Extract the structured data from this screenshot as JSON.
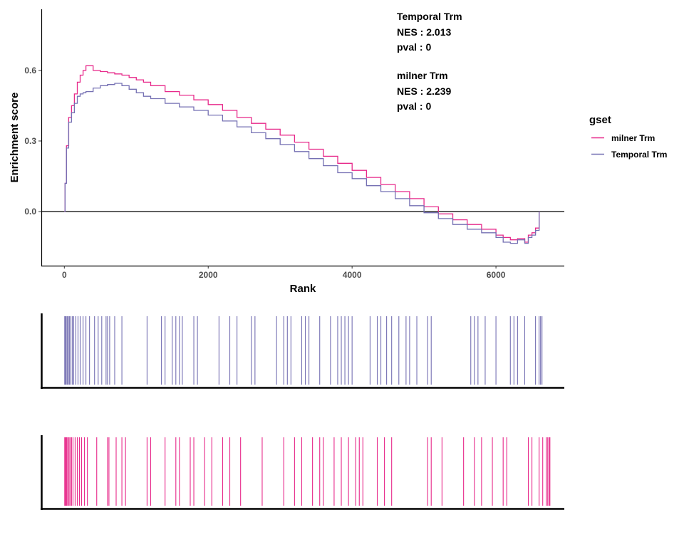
{
  "chart_data": {
    "type": "line",
    "xlabel": "Rank",
    "ylabel": "Enrichment score",
    "xlim": [
      -320,
      6950
    ],
    "ylim": [
      -0.23,
      0.86
    ],
    "x_ticks": [
      0,
      2000,
      4000,
      6000
    ],
    "x_tick_labels": [
      "0",
      "2000",
      "4000",
      "6000"
    ],
    "y_ticks": [
      0.0,
      0.3,
      0.6
    ],
    "y_tick_labels": [
      "0.0",
      "0.3",
      "0.6"
    ],
    "zero_line": true,
    "grid": false,
    "legend": {
      "title": "gset",
      "position": "right",
      "entries": [
        {
          "label": "milner Trm",
          "color": "#e7298a"
        },
        {
          "label": "Temporal Trm",
          "color": "#7570b3"
        }
      ]
    },
    "annotations": [
      {
        "lines": [
          "Temporal Trm",
          "NES : 2.013",
          "pval : 0"
        ]
      },
      {
        "lines": [
          "milner Trm",
          "NES : 2.239",
          "pval : 0"
        ]
      }
    ],
    "series": [
      {
        "name": "milner Trm",
        "color": "#e7298a",
        "x": [
          0,
          10,
          30,
          60,
          100,
          140,
          180,
          220,
          260,
          300,
          400,
          500,
          600,
          700,
          800,
          900,
          1000,
          1100,
          1200,
          1400,
          1600,
          1800,
          2000,
          2200,
          2400,
          2600,
          2800,
          3000,
          3200,
          3400,
          3600,
          3800,
          4000,
          4200,
          4400,
          4600,
          4800,
          5000,
          5200,
          5400,
          5600,
          5800,
          6000,
          6100,
          6200,
          6300,
          6400,
          6450,
          6500,
          6550,
          6600
        ],
        "y": [
          0.0,
          0.12,
          0.28,
          0.4,
          0.45,
          0.5,
          0.55,
          0.58,
          0.6,
          0.62,
          0.6,
          0.595,
          0.59,
          0.585,
          0.58,
          0.57,
          0.56,
          0.55,
          0.535,
          0.51,
          0.495,
          0.475,
          0.455,
          0.43,
          0.4,
          0.375,
          0.35,
          0.325,
          0.295,
          0.265,
          0.235,
          0.205,
          0.175,
          0.145,
          0.115,
          0.085,
          0.055,
          0.02,
          -0.01,
          -0.035,
          -0.055,
          -0.075,
          -0.1,
          -0.11,
          -0.12,
          -0.115,
          -0.13,
          -0.1,
          -0.09,
          -0.07,
          0.0
        ]
      },
      {
        "name": "Temporal Trm",
        "color": "#7570b3",
        "x": [
          0,
          10,
          30,
          60,
          100,
          140,
          180,
          220,
          260,
          300,
          400,
          500,
          600,
          700,
          800,
          900,
          1000,
          1100,
          1200,
          1400,
          1600,
          1800,
          2000,
          2200,
          2400,
          2600,
          2800,
          3000,
          3200,
          3400,
          3600,
          3800,
          4000,
          4200,
          4400,
          4600,
          4800,
          5000,
          5200,
          5400,
          5600,
          5800,
          6000,
          6100,
          6200,
          6300,
          6400,
          6450,
          6500,
          6550,
          6600
        ],
        "y": [
          0.0,
          0.12,
          0.27,
          0.38,
          0.42,
          0.46,
          0.49,
          0.5,
          0.505,
          0.51,
          0.525,
          0.535,
          0.54,
          0.545,
          0.535,
          0.52,
          0.505,
          0.49,
          0.48,
          0.46,
          0.445,
          0.43,
          0.41,
          0.385,
          0.36,
          0.335,
          0.31,
          0.285,
          0.255,
          0.225,
          0.195,
          0.165,
          0.14,
          0.11,
          0.085,
          0.055,
          0.025,
          -0.005,
          -0.03,
          -0.055,
          -0.075,
          -0.09,
          -0.11,
          -0.13,
          -0.135,
          -0.12,
          -0.135,
          -0.11,
          -0.1,
          -0.08,
          0.0
        ]
      }
    ],
    "hit_positions": {
      "Temporal Trm": [
        5,
        15,
        25,
        40,
        55,
        70,
        90,
        110,
        130,
        160,
        190,
        220,
        260,
        300,
        350,
        420,
        470,
        520,
        580,
        600,
        630,
        700,
        800,
        1150,
        1350,
        1400,
        1500,
        1550,
        1600,
        1640,
        1800,
        1850,
        2150,
        2300,
        2400,
        2600,
        2650,
        2950,
        3050,
        3100,
        3150,
        3300,
        3350,
        3400,
        3550,
        3700,
        3800,
        3850,
        3900,
        3950,
        4000,
        4250,
        4350,
        4400,
        4480,
        4550,
        4650,
        4750,
        4800,
        4900,
        5050,
        5100,
        5650,
        5700,
        5750,
        5850,
        6000,
        6200,
        6250,
        6300,
        6400,
        6550,
        6600,
        6620,
        6640
      ],
      "milner Trm": [
        5,
        15,
        25,
        35,
        50,
        65,
        80,
        100,
        120,
        150,
        180,
        210,
        240,
        280,
        320,
        450,
        600,
        620,
        720,
        800,
        850,
        1150,
        1200,
        1400,
        1550,
        1600,
        1750,
        1800,
        1950,
        2050,
        2200,
        2300,
        2450,
        2750,
        3050,
        3200,
        3300,
        3450,
        3550,
        3600,
        3750,
        3850,
        3950,
        4050,
        4100,
        4150,
        4350,
        4450,
        4550,
        5050,
        5100,
        5250,
        5550,
        5700,
        5800,
        5950,
        6100,
        6150,
        6450,
        6500,
        6600,
        6650,
        6700,
        6720,
        6740,
        6750
      ]
    }
  }
}
